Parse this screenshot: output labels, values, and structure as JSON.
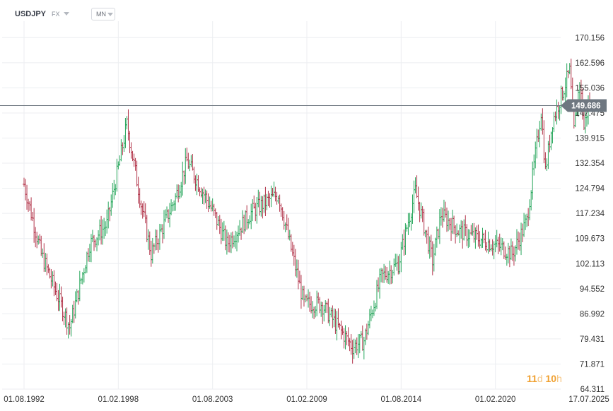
{
  "header": {
    "symbol": "USDJPY",
    "market": "FX",
    "timeframe": "MN"
  },
  "countdown": {
    "days": "11",
    "days_unit": "d",
    "hours": "10",
    "hours_unit": "h"
  },
  "colors": {
    "up": "#26a65b",
    "down": "#b2344a",
    "grid": "#eceef1",
    "price_line": "#6e7780",
    "price_badge": "#6e7780"
  },
  "chart_data": {
    "type": "ohlc",
    "title": "USDJPY",
    "xlabel": "",
    "ylabel": "",
    "ylim": [
      64.311,
      175.0
    ],
    "y_ticks": [
      "170.156",
      "162.596",
      "155.036",
      "147.475",
      "139.915",
      "132.354",
      "124.794",
      "117.234",
      "109.673",
      "102.113",
      "94.552",
      "86.992",
      "79.431",
      "71.871",
      "64.311"
    ],
    "x_ticks": [
      "01.08.1992",
      "01.02.1998",
      "01.08.2003",
      "01.02.2009",
      "01.08.2014",
      "01.02.2020",
      "17.07.2025"
    ],
    "last_price": "149.686",
    "approx_close_path": [
      {
        "date": "1992-08",
        "value": 126
      },
      {
        "date": "1993-08",
        "value": 105
      },
      {
        "date": "1995-04",
        "value": 83
      },
      {
        "date": "1996-06",
        "value": 108
      },
      {
        "date": "1997-06",
        "value": 114
      },
      {
        "date": "1998-08",
        "value": 144
      },
      {
        "date": "1999-06",
        "value": 120
      },
      {
        "date": "2000-01",
        "value": 105
      },
      {
        "date": "2001-06",
        "value": 122
      },
      {
        "date": "2002-02",
        "value": 133
      },
      {
        "date": "2003-08",
        "value": 118
      },
      {
        "date": "2004-06",
        "value": 108
      },
      {
        "date": "2005-12",
        "value": 118
      },
      {
        "date": "2007-06",
        "value": 123
      },
      {
        "date": "2008-12",
        "value": 90
      },
      {
        "date": "2009-12",
        "value": 90
      },
      {
        "date": "2011-10",
        "value": 77
      },
      {
        "date": "2012-06",
        "value": 79
      },
      {
        "date": "2013-06",
        "value": 98
      },
      {
        "date": "2014-06",
        "value": 102
      },
      {
        "date": "2015-06",
        "value": 124
      },
      {
        "date": "2016-06",
        "value": 103
      },
      {
        "date": "2016-12",
        "value": 117
      },
      {
        "date": "2017-12",
        "value": 112
      },
      {
        "date": "2018-12",
        "value": 110
      },
      {
        "date": "2020-06",
        "value": 107
      },
      {
        "date": "2021-02",
        "value": 105
      },
      {
        "date": "2021-12",
        "value": 115
      },
      {
        "date": "2022-10",
        "value": 148
      },
      {
        "date": "2023-01",
        "value": 130
      },
      {
        "date": "2023-06",
        "value": 145
      },
      {
        "date": "2024-06",
        "value": 160
      },
      {
        "date": "2024-09",
        "value": 142
      },
      {
        "date": "2025-01",
        "value": 157
      },
      {
        "date": "2025-04",
        "value": 143
      },
      {
        "date": "2025-07",
        "value": 149.686
      }
    ]
  }
}
